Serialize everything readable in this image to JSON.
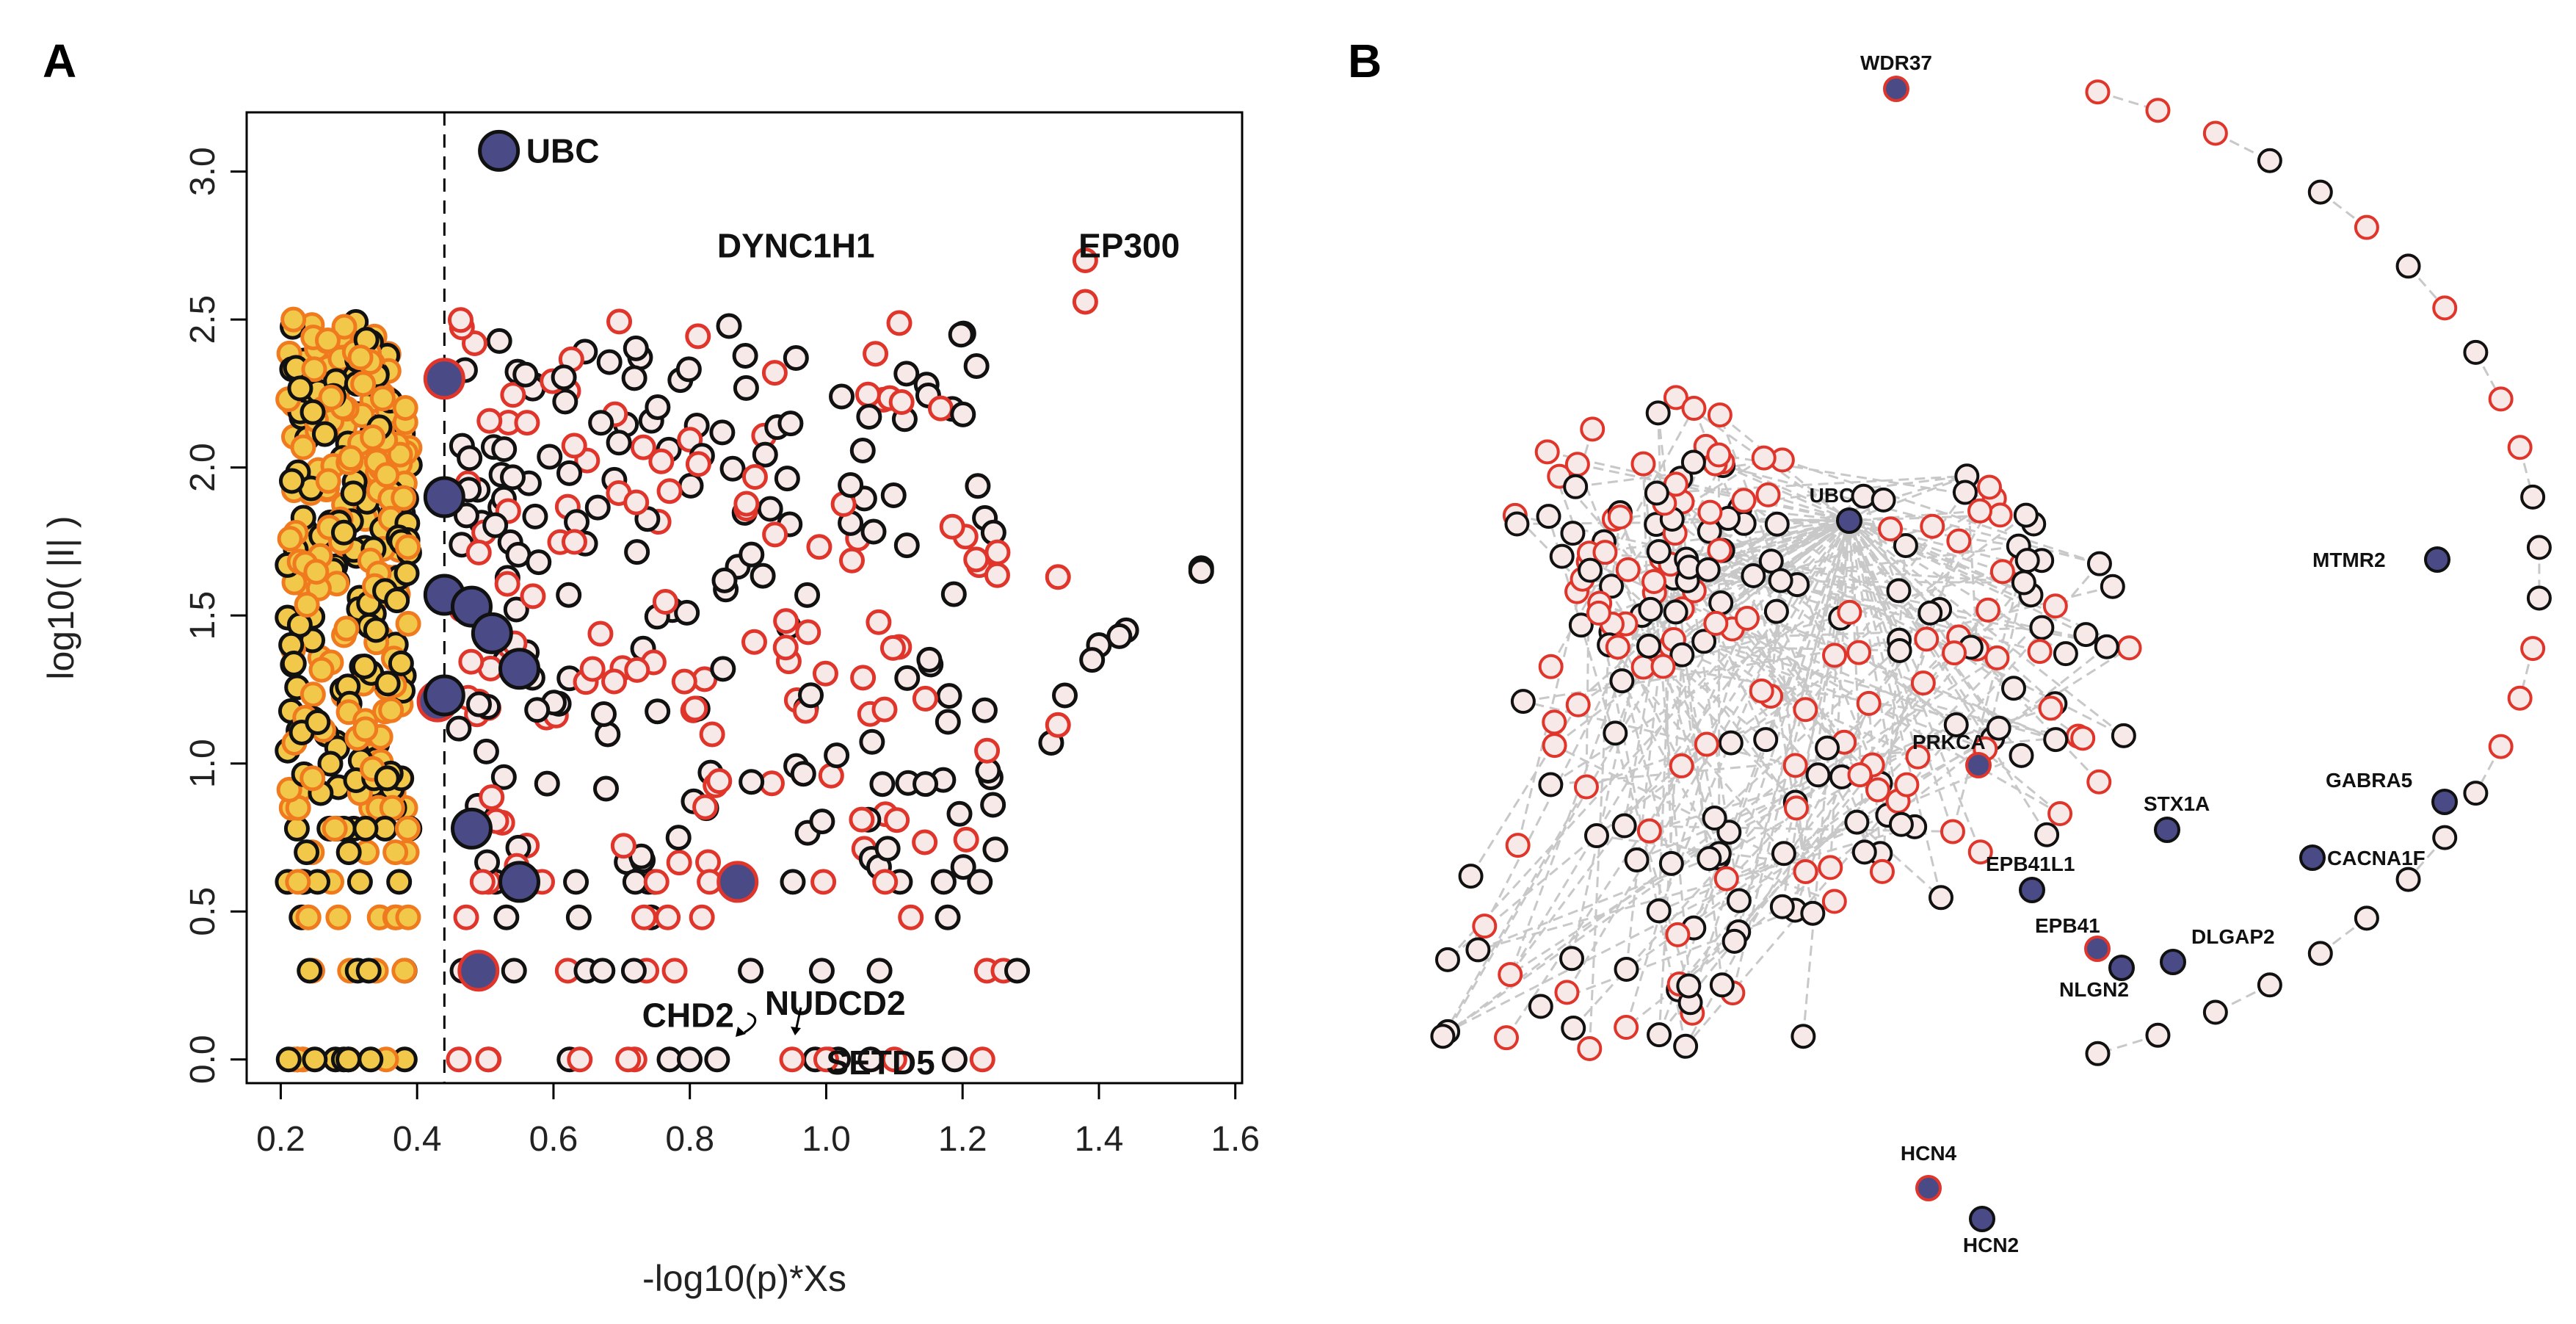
{
  "colors": {
    "yellow_fill": "#f2c84b",
    "orange_edge": "#f07a1e",
    "red_edge": "#e0352b",
    "black_edge": "#111111",
    "node_fill": "#f6e9e7",
    "highlight_fill": "#4a4a86",
    "edge_gray": "#c8c8c8"
  },
  "chart_data": [
    {
      "panel": "A",
      "type": "scatter",
      "xlabel": "-log10(p)*Xs",
      "ylabel": "log10( |I| )",
      "xlim": [
        0.15,
        1.61
      ],
      "ylim": [
        -0.08,
        3.2
      ],
      "xticks": [
        "0.2",
        "0.4",
        "0.6",
        "0.8",
        "1.0",
        "1.2",
        "1.4",
        "1.6"
      ],
      "yticks": [
        "0.0",
        "0.5",
        "1.0",
        "1.5",
        "2.0",
        "2.5",
        "3.0"
      ],
      "threshold_x": 0.44,
      "highlighted_points": [
        {
          "x": 0.52,
          "y": 3.07
        },
        {
          "x": 0.44,
          "y": 2.3
        },
        {
          "x": 0.44,
          "y": 1.9
        },
        {
          "x": 0.44,
          "y": 1.57
        },
        {
          "x": 0.48,
          "y": 1.53
        },
        {
          "x": 0.51,
          "y": 1.44
        },
        {
          "x": 0.55,
          "y": 1.32
        },
        {
          "x": 0.43,
          "y": 1.21
        },
        {
          "x": 0.44,
          "y": 1.23
        },
        {
          "x": 0.48,
          "y": 0.78
        },
        {
          "x": 0.55,
          "y": 0.6
        },
        {
          "x": 0.87,
          "y": 0.6
        },
        {
          "x": 0.49,
          "y": 0.3
        }
      ],
      "annotations": [
        {
          "label": "UBC",
          "x": 0.56,
          "y": 3.07
        },
        {
          "label": "DYNC1H1",
          "x": 0.84,
          "y": 2.75
        },
        {
          "label": "EP300",
          "x": 1.37,
          "y": 2.75
        },
        {
          "label": "CHD2",
          "x": 0.73,
          "y": 0.15
        },
        {
          "label": "NUDCD2",
          "x": 0.91,
          "y": 0.19
        },
        {
          "label": "SETD5",
          "x": 1.0,
          "y": -0.01
        }
      ]
    },
    {
      "panel": "B",
      "type": "network",
      "labeled_nodes": [
        {
          "label": "WDR37"
        },
        {
          "label": "UBC"
        },
        {
          "label": "MTMR2"
        },
        {
          "label": "PRKCA"
        },
        {
          "label": "STX1A"
        },
        {
          "label": "GABRA5"
        },
        {
          "label": "CACNA1F"
        },
        {
          "label": "EPB41L1"
        },
        {
          "label": "EPB41"
        },
        {
          "label": "DLGAP2"
        },
        {
          "label": "NLGN2"
        },
        {
          "label": "HCN4"
        },
        {
          "label": "HCN2"
        }
      ]
    }
  ]
}
